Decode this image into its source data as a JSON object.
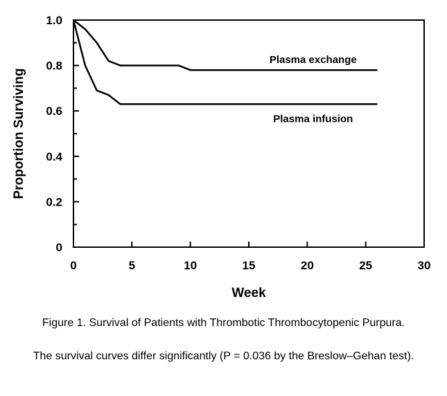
{
  "chart_data": {
    "type": "line",
    "xlabel": "Week",
    "ylabel": "Proportion Surviving",
    "xlim": [
      0,
      30
    ],
    "ylim": [
      0,
      1.0
    ],
    "x_ticks": [
      0,
      5,
      10,
      15,
      20,
      25,
      30
    ],
    "x_tick_labels": [
      "0",
      "5",
      "10",
      "15",
      "20",
      "25",
      "30"
    ],
    "y_ticks": [
      0,
      0.2,
      0.4,
      0.6,
      0.8,
      1.0
    ],
    "y_tick_labels": [
      "0",
      "0.2",
      "0.4",
      "0.6",
      "0.8",
      "1.0"
    ],
    "grid": false,
    "series": [
      {
        "name": "Plasma exchange",
        "x": [
          0,
          1,
          2,
          3,
          4,
          5,
          6,
          7,
          8,
          9,
          10,
          26
        ],
        "y": [
          1.0,
          0.96,
          0.9,
          0.82,
          0.8,
          0.8,
          0.8,
          0.8,
          0.8,
          0.8,
          0.78,
          0.78
        ]
      },
      {
        "name": "Plasma infusion",
        "x": [
          0,
          1,
          2,
          3,
          4,
          26
        ],
        "y": [
          1.0,
          0.8,
          0.69,
          0.67,
          0.63,
          0.63
        ]
      }
    ]
  },
  "caption": {
    "title": "Figure 1. Survival of Patients with Thrombotic Thrombocytopenic Purpura.",
    "note": "The survival curves differ significantly (P = 0.036 by the Breslow–Gehan test)."
  }
}
